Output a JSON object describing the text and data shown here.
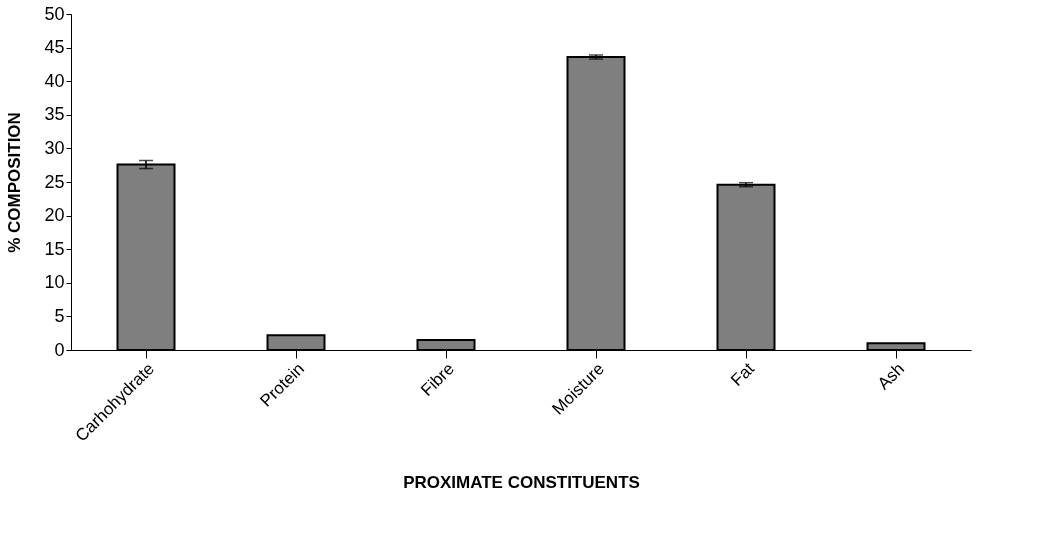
{
  "chart_data": {
    "type": "bar",
    "categories": [
      "Carhohydrate",
      "Protein",
      "Fibre",
      "Moisture",
      "Fat",
      "Ash"
    ],
    "values": [
      27.6,
      2.2,
      1.5,
      43.6,
      24.6,
      1.0
    ],
    "errors": [
      0.6,
      null,
      null,
      0.3,
      0.3,
      null
    ],
    "color": "#7f7f7f",
    "xlabel": "PROXIMATE CONSTITUENTS",
    "ylabel": "% COMPOSITION",
    "ylim": [
      0,
      50
    ],
    "yticks": [
      0,
      5,
      10,
      15,
      20,
      25,
      30,
      35,
      40,
      45,
      50
    ],
    "grid": false
  }
}
